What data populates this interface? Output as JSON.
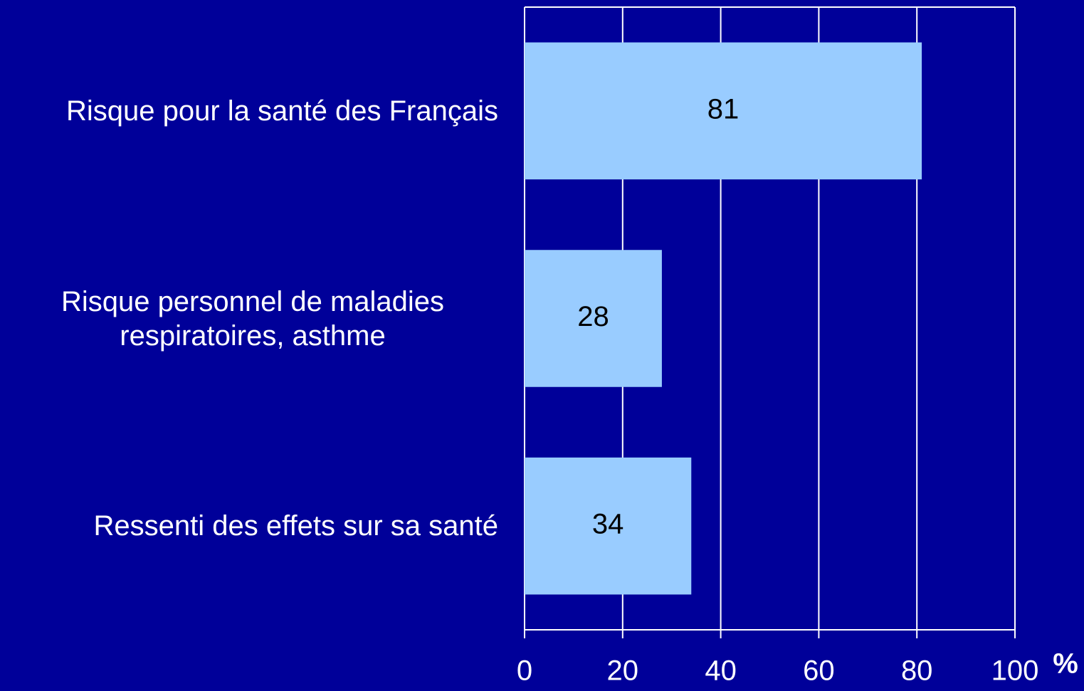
{
  "chart_data": {
    "type": "bar",
    "orientation": "horizontal",
    "categories": [
      "Risque pour la santé des Français",
      "Risque personnel de maladies respiratoires, asthme",
      "Ressenti des effets sur sa santé"
    ],
    "values": [
      81,
      28,
      34
    ],
    "color": "#99ccff",
    "background": "#000099",
    "xlim": [
      0,
      100
    ],
    "xticks": [
      0,
      20,
      40,
      60,
      80,
      100
    ],
    "xlabel": "%",
    "grid": true
  }
}
